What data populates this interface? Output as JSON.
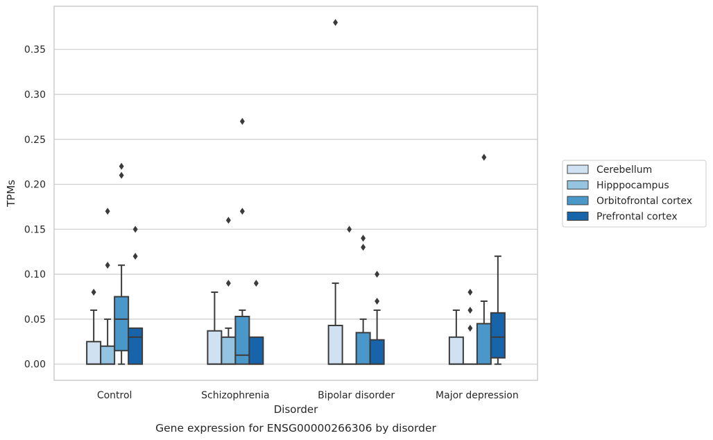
{
  "chart_data": {
    "type": "box",
    "caption": "Gene expression for ENSG00000266306 by disorder",
    "xlabel": "Disorder",
    "ylabel": "TPMs",
    "ylim": [
      -0.018,
      0.398
    ],
    "yticks": [
      "0.00",
      "0.05",
      "0.10",
      "0.15",
      "0.20",
      "0.25",
      "0.30",
      "0.35"
    ],
    "grid": true,
    "legend_position": "right",
    "categories": [
      "Control",
      "Schizophrenia",
      "Bipolar disorder",
      "Major depression"
    ],
    "series": [
      {
        "name": "Cerebellum",
        "color": "#d0e1f2",
        "boxes": [
          {
            "q1": 0.0,
            "median": 0.0,
            "q3": 0.025,
            "wlow": 0.0,
            "whigh": 0.06,
            "outliers": [
              0.08
            ]
          },
          {
            "q1": 0.0,
            "median": 0.0,
            "q3": 0.037,
            "wlow": 0.0,
            "whigh": 0.08,
            "outliers": []
          },
          {
            "q1": 0.0,
            "median": 0.0,
            "q3": 0.043,
            "wlow": 0.0,
            "whigh": 0.09,
            "outliers": [
              0.38
            ]
          },
          {
            "q1": 0.0,
            "median": 0.0,
            "q3": 0.03,
            "wlow": 0.0,
            "whigh": 0.06,
            "outliers": []
          }
        ]
      },
      {
        "name": "Hipppocampus",
        "color": "#94c4df",
        "boxes": [
          {
            "q1": 0.0,
            "median": 0.0,
            "q3": 0.02,
            "wlow": 0.0,
            "whigh": 0.05,
            "outliers": [
              0.11,
              0.17
            ]
          },
          {
            "q1": 0.0,
            "median": 0.0,
            "q3": 0.03,
            "wlow": 0.0,
            "whigh": 0.04,
            "outliers": [
              0.09,
              0.16
            ]
          },
          {
            "q1": 0.0,
            "median": 0.0,
            "q3": 0.0,
            "wlow": 0.0,
            "whigh": 0.0,
            "outliers": [
              0.15
            ]
          },
          {
            "q1": 0.0,
            "median": 0.0,
            "q3": 0.0,
            "wlow": 0.0,
            "whigh": 0.0,
            "outliers": [
              0.04,
              0.06,
              0.08
            ]
          }
        ]
      },
      {
        "name": "Orbitofrontal cortex",
        "color": "#4a98c9",
        "boxes": [
          {
            "q1": 0.015,
            "median": 0.05,
            "q3": 0.075,
            "wlow": 0.0,
            "whigh": 0.11,
            "outliers": [
              0.21,
              0.22
            ]
          },
          {
            "q1": 0.0,
            "median": 0.01,
            "q3": 0.053,
            "wlow": 0.0,
            "whigh": 0.06,
            "outliers": [
              0.17,
              0.27
            ]
          },
          {
            "q1": 0.0,
            "median": 0.0,
            "q3": 0.035,
            "wlow": 0.0,
            "whigh": 0.05,
            "outliers": [
              0.13,
              0.14
            ]
          },
          {
            "q1": 0.0,
            "median": 0.0,
            "q3": 0.045,
            "wlow": 0.0,
            "whigh": 0.07,
            "outliers": [
              0.23
            ]
          }
        ]
      },
      {
        "name": "Prefrontal cortex",
        "color": "#1764ab",
        "boxes": [
          {
            "q1": 0.0,
            "median": 0.03,
            "q3": 0.04,
            "wlow": 0.0,
            "whigh": 0.04,
            "outliers": [
              0.12,
              0.15
            ]
          },
          {
            "q1": 0.0,
            "median": 0.0,
            "q3": 0.03,
            "wlow": 0.0,
            "whigh": 0.03,
            "outliers": [
              0.09
            ]
          },
          {
            "q1": 0.0,
            "median": 0.0,
            "q3": 0.027,
            "wlow": 0.0,
            "whigh": 0.06,
            "outliers": [
              0.07,
              0.1
            ]
          },
          {
            "q1": 0.007,
            "median": 0.03,
            "q3": 0.057,
            "wlow": 0.0,
            "whigh": 0.12,
            "outliers": []
          }
        ]
      }
    ]
  }
}
